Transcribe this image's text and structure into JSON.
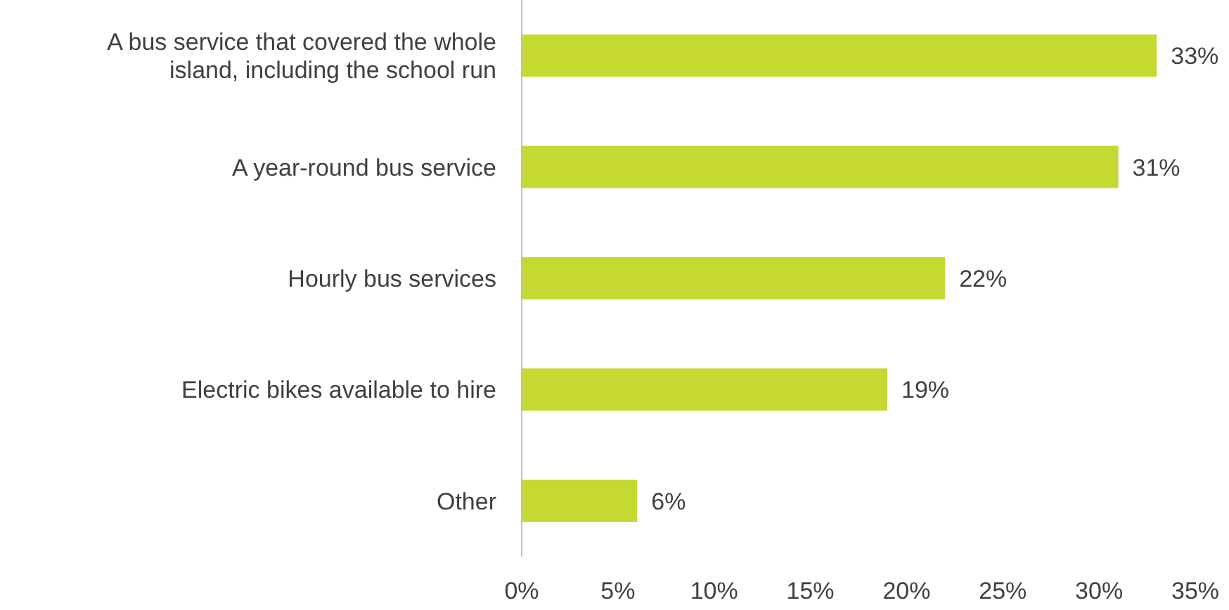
{
  "chart_data": {
    "type": "bar",
    "orientation": "horizontal",
    "categories": [
      "A bus service that covered the whole island, including the school run",
      "A year-round bus service",
      "Hourly bus services",
      "Electric bikes available to hire",
      "Other"
    ],
    "values": [
      33,
      31,
      22,
      19,
      6
    ],
    "value_labels": [
      "33%",
      "31%",
      "22%",
      "19%",
      "6%"
    ],
    "color": "#c5d932",
    "xlim": [
      0,
      35
    ],
    "xticks": [
      {
        "value": 0,
        "label": "0%"
      },
      {
        "value": 5,
        "label": "5%"
      },
      {
        "value": 10,
        "label": "10%"
      },
      {
        "value": 15,
        "label": "15%"
      },
      {
        "value": 20,
        "label": "20%"
      },
      {
        "value": 25,
        "label": "25%"
      },
      {
        "value": 30,
        "label": "30%"
      },
      {
        "value": 35,
        "label": "35%"
      }
    ],
    "grid": false
  }
}
